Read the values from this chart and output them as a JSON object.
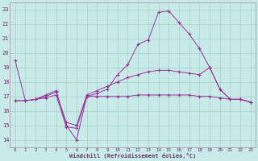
{
  "background_color": "#c8eae8",
  "grid_color": "#99ccbb",
  "line_color": "#993399",
  "spine_color": "#aa88aa",
  "xlabel": "Windchill (Refroidissement éolien,°C)",
  "xlabel_color": "#663366",
  "tick_color": "#663366",
  "xlim": [
    -0.5,
    23.5
  ],
  "ylim": [
    13.5,
    23.5
  ],
  "yticks": [
    14,
    15,
    16,
    17,
    18,
    19,
    20,
    21,
    22,
    23
  ],
  "xticks": [
    0,
    1,
    2,
    3,
    4,
    5,
    6,
    7,
    8,
    9,
    10,
    11,
    12,
    13,
    14,
    15,
    16,
    17,
    18,
    19,
    20,
    21,
    22,
    23
  ],
  "s1_x": [
    0,
    1,
    2,
    3,
    4,
    5,
    6,
    7,
    8,
    9,
    10,
    11,
    12,
    13,
    14,
    15,
    16,
    17,
    18,
    19,
    20,
    21,
    22,
    23
  ],
  "s1_y": [
    19.5,
    16.7,
    16.8,
    17.1,
    17.4,
    15.0,
    14.0,
    17.0,
    17.2,
    17.5,
    18.5,
    19.2,
    20.6,
    20.9,
    22.8,
    22.9,
    22.1,
    21.3,
    20.3,
    19.0,
    17.5,
    16.8,
    16.8,
    16.6
  ],
  "s2_x": [
    0,
    1,
    2,
    3,
    4,
    5,
    6,
    7,
    8,
    9,
    10,
    11,
    12,
    13,
    14,
    15,
    16,
    17,
    18,
    19,
    20,
    21,
    22,
    23
  ],
  "s2_y": [
    16.7,
    16.7,
    16.8,
    16.9,
    17.1,
    14.9,
    14.8,
    17.0,
    17.0,
    17.0,
    17.0,
    17.0,
    17.1,
    17.1,
    17.1,
    17.1,
    17.1,
    17.1,
    17.0,
    17.0,
    16.9,
    16.8,
    16.8,
    16.6
  ],
  "s3_x": [
    0,
    1,
    2,
    3,
    4,
    5,
    6,
    7,
    8,
    9,
    10,
    11,
    12,
    13,
    14,
    15,
    16,
    17,
    18,
    19,
    20,
    21,
    22,
    23
  ],
  "s3_y": [
    16.7,
    16.7,
    16.8,
    17.0,
    17.3,
    15.2,
    15.0,
    17.1,
    17.4,
    17.7,
    18.0,
    18.3,
    18.5,
    18.7,
    18.8,
    18.8,
    18.7,
    18.6,
    18.5,
    19.0,
    17.5,
    16.8,
    16.8,
    16.6
  ]
}
